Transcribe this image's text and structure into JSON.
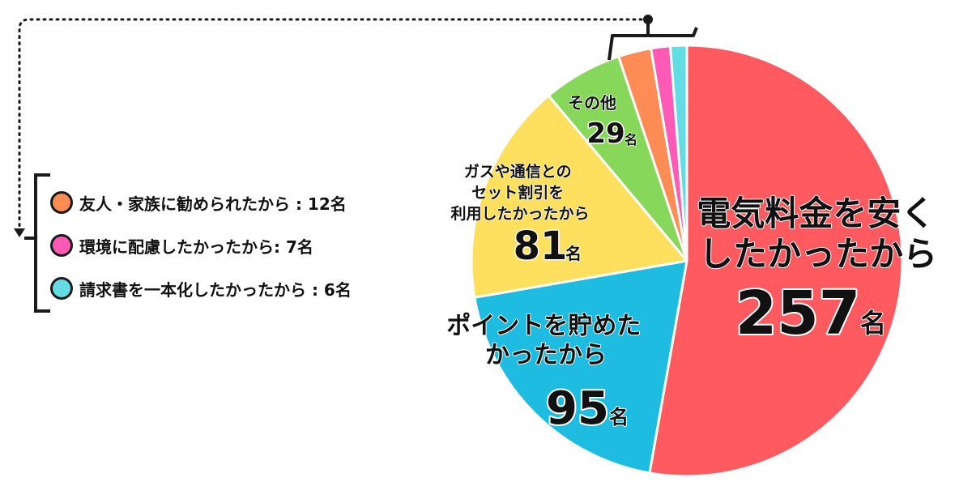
{
  "chart_data": {
    "type": "pie",
    "unit": "名",
    "slices": [
      {
        "label": [
          "電気料金を安く",
          "したかったから"
        ],
        "value": 257,
        "color": "#ff5a5f"
      },
      {
        "label": [
          "ポイントを貯めた",
          "かったから"
        ],
        "value": 95,
        "color": "#1ebce0"
      },
      {
        "label": [
          "ガスや通信との",
          "セット割引を",
          "利用したかったから"
        ],
        "value": 81,
        "color": "#ffdf5e"
      },
      {
        "label": [
          "その他"
        ],
        "value": 29,
        "color": "#87d85a"
      },
      {
        "label": [
          "友人・家族に勧められたから : 12名"
        ],
        "value": 12,
        "color": "#ff8c55"
      },
      {
        "label": [
          "環境に配慮したかったから: 7名"
        ],
        "value": 7,
        "color": "#ff5bb6"
      },
      {
        "label": [
          "請求書を一本化したかったから : 6名"
        ],
        "value": 6,
        "color": "#63dde3"
      }
    ]
  },
  "legend": [
    {
      "text": "友人・家族に勧められたから : 12名",
      "color": "#ff8c55"
    },
    {
      "text": "環境に配慮したかったから: 7名",
      "color": "#ff5bb6"
    },
    {
      "text": "請求書を一本化したかったから : 6名",
      "color": "#63dde3"
    }
  ]
}
